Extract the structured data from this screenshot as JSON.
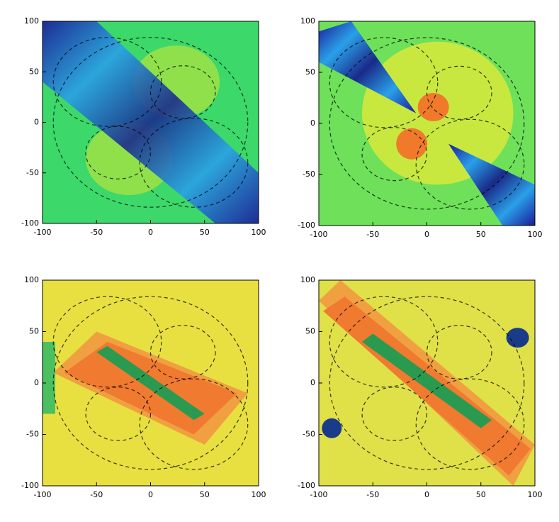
{
  "chart_data": [
    {
      "type": "heatmap",
      "xlim": [
        -100,
        100
      ],
      "ylim": [
        -100,
        100
      ],
      "xticks": [
        -100,
        -50,
        0,
        50,
        100
      ],
      "yticks": [
        -100,
        -50,
        0,
        50,
        100
      ]
    },
    {
      "type": "heatmap",
      "xlim": [
        -100,
        100
      ],
      "ylim": [
        -100,
        100
      ],
      "xticks": [
        -100,
        -50,
        0,
        50,
        100
      ],
      "yticks": [
        -100,
        -50,
        0,
        50,
        100
      ]
    },
    {
      "type": "heatmap",
      "xlim": [
        -100,
        100
      ],
      "ylim": [
        -100,
        100
      ],
      "xticks": [
        -100,
        -50,
        0,
        50,
        100
      ],
      "yticks": [
        -100,
        -50,
        0,
        50,
        100
      ]
    },
    {
      "type": "heatmap",
      "xlim": [
        -100,
        100
      ],
      "ylim": [
        -100,
        100
      ],
      "xticks": [
        -100,
        -50,
        0,
        50,
        100
      ],
      "yticks": [
        -100,
        -50,
        0,
        50,
        100
      ]
    }
  ]
}
